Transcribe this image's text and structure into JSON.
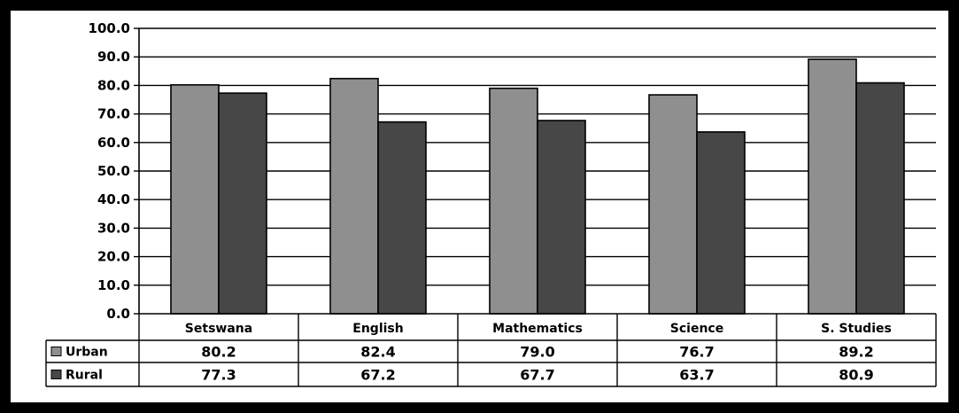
{
  "chart_data": {
    "type": "bar",
    "categories": [
      "Setswana",
      "English",
      "Mathematics",
      "Science",
      "S. Studies"
    ],
    "series": [
      {
        "name": "Urban",
        "values": [
          80.2,
          82.4,
          79.0,
          76.7,
          89.2
        ],
        "labels": [
          "80.2",
          "82.4",
          "79.0",
          "76.7",
          "89.2"
        ],
        "color": "#8f8f8f"
      },
      {
        "name": "Rural",
        "values": [
          77.3,
          67.2,
          67.7,
          63.7,
          80.9
        ],
        "labels": [
          "77.3",
          "67.2",
          "67.7",
          "63.7",
          "80.9"
        ],
        "color": "#474747"
      }
    ],
    "ylim": [
      0,
      100
    ],
    "yticks": [
      "0.0",
      "10.0",
      "20.0",
      "30.0",
      "40.0",
      "50.0",
      "60.0",
      "70.0",
      "80.0",
      "90.0",
      "100.0"
    ],
    "grid": true,
    "legend": "data-table",
    "title": "",
    "xlabel": "",
    "ylabel": ""
  }
}
